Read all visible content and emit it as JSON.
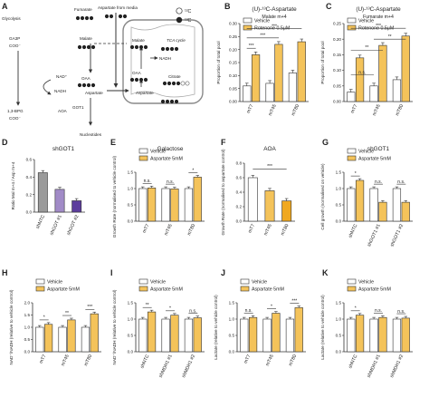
{
  "figure": {
    "panel_labels": [
      "A",
      "B",
      "C",
      "D",
      "E",
      "F",
      "G",
      "H",
      "I",
      "J",
      "K"
    ],
    "colors": {
      "vehicle": "#ffffff",
      "treated": "#f4c35a",
      "grey": "#9a9a9a",
      "purple": "#a18bc7",
      "dark_purple": "#5c3d9d",
      "edge": "#333333"
    }
  },
  "diagram": {
    "glycolysis": "Glycolysis",
    "ga3p": "GA3P",
    "coo_top": "COO⁻",
    "nad_plus": "NAD⁺",
    "nadh_left": "NADH",
    "bpg": "1,3-BPG",
    "coo_bottom": "COO⁻",
    "aspartate_from_media": "Aspartate from media",
    "fumarate": "Fumarate",
    "malate_left": "Malate",
    "oaa_left": "OAA",
    "aspartate_center": "Aspartate",
    "got1": "GOT1",
    "aoa": "AOA",
    "nucleotides": "Nucleotides",
    "malate_mito": "Malate",
    "nadh_mito": "NADH",
    "oaa_mito": "OAA",
    "aspartate_mito": "Aspartate",
    "citrate": "Citrate",
    "tca": "TCA cycle",
    "c12": "¹²C",
    "c13": "¹³C"
  },
  "chart_data": [
    {
      "panel": "B",
      "type": "bar",
      "title": "(U)-¹³C-Aspartate",
      "subtitle": "Malate m+4",
      "ylabel": "Proportion of total pool",
      "ylim": [
        0,
        0.3
      ],
      "yticks": [
        "0.00",
        "0.05",
        "0.10",
        "0.15",
        "0.20",
        "0.25",
        "0.30"
      ],
      "categories": [
        "mT7",
        "mT45",
        "mT80"
      ],
      "series": [
        {
          "name": "Vehicle",
          "values": [
            0.06,
            0.07,
            0.11
          ]
        },
        {
          "name": "Rotenone 0.5μM",
          "values": [
            0.18,
            0.22,
            0.23
          ]
        }
      ],
      "legend": [
        "Vehicle",
        "Rotenone 0.5μM"
      ],
      "significance": [
        "***",
        "***",
        "***"
      ]
    },
    {
      "panel": "C",
      "type": "bar",
      "title": "(U)-¹³C-Aspartate",
      "subtitle": "Fumarate m+4",
      "ylabel": "Proportion of total pool",
      "ylim": [
        0,
        0.25
      ],
      "yticks": [
        "0.00",
        "0.05",
        "0.10",
        "0.15",
        "0.20",
        "0.25"
      ],
      "categories": [
        "mT7",
        "mT45",
        "mT80"
      ],
      "series": [
        {
          "name": "Vehicle",
          "values": [
            0.03,
            0.05,
            0.07
          ]
        },
        {
          "name": "Rotenone 0.5μM",
          "values": [
            0.14,
            0.18,
            0.21
          ]
        }
      ],
      "legend": [
        "Vehicle",
        "Rotenone 0.5μM"
      ],
      "significance": [
        "n.s.",
        "**",
        "***",
        "**"
      ]
    },
    {
      "panel": "D",
      "type": "bar",
      "title": "shGOT1",
      "ylabel": "Ratio Mal m+4 / Asp m+4",
      "ylim": [
        0,
        0.6
      ],
      "yticks": [
        "0.0",
        "0.2",
        "0.4",
        "0.6"
      ],
      "categories": [
        "shNTC",
        "shGOT #1",
        "shGOT #2"
      ],
      "values": [
        0.45,
        0.26,
        0.13
      ],
      "colors": [
        "#9a9a9a",
        "#a18bc7",
        "#5c3d9d"
      ]
    },
    {
      "panel": "E",
      "type": "bar",
      "title": "Galactose",
      "ylabel": "Growth Rate (normalised to vehicle control)",
      "ylim": [
        0,
        1.5
      ],
      "yticks": [
        "0.0",
        "0.5",
        "1.0",
        "1.5"
      ],
      "categories": [
        "mT7",
        "mT45",
        "mT80"
      ],
      "series": [
        {
          "name": "Vehicle",
          "values": [
            1.0,
            1.0,
            1.0
          ]
        },
        {
          "name": "Aspartate 5mM",
          "values": [
            1.02,
            0.99,
            1.35
          ]
        }
      ],
      "legend": [
        "Vehicle",
        "Aspartate 5mM"
      ],
      "significance": [
        "n.s.",
        "n.s.",
        "*"
      ]
    },
    {
      "panel": "F",
      "type": "bar",
      "title": "AOA",
      "ylabel": "Growth Rate (normalised to aspartate control)",
      "ylim": [
        0,
        0.8
      ],
      "yticks": [
        "0.0",
        "0.2",
        "0.4",
        "0.6",
        "0.8"
      ],
      "categories": [
        "mT7",
        "mT45",
        "mT80"
      ],
      "values": [
        0.6,
        0.42,
        0.28
      ],
      "colors": [
        "#ffffff",
        "#f4c35a",
        "#f0a820"
      ],
      "significance": [
        "***"
      ]
    },
    {
      "panel": "G",
      "type": "bar",
      "title": "shGOT1",
      "ylabel": "Cell growth (normalised on vehicle)",
      "ylim": [
        0,
        1.5
      ],
      "yticks": [
        "0.0",
        "0.5",
        "1.0",
        "1.5"
      ],
      "categories": [
        "shNTC",
        "shGOT1 #1",
        "shGOT1 #2"
      ],
      "series": [
        {
          "name": "Vehicle",
          "values": [
            1.0,
            1.0,
            1.0
          ]
        },
        {
          "name": "Aspartate 5mM",
          "values": [
            1.25,
            0.58,
            0.58
          ]
        }
      ],
      "legend": [
        "Vehicle",
        "Aspartate 5mM"
      ],
      "significance": [
        "*",
        "n.s.",
        "n.s."
      ]
    },
    {
      "panel": "H",
      "type": "bar",
      "ylabel": "NAD⁺/NADH (relative to vehicle control)",
      "ylim": [
        0,
        2.0
      ],
      "yticks": [
        "0.0",
        "0.5",
        "1.0",
        "1.5",
        "2.0"
      ],
      "categories": [
        "mT7",
        "mT45",
        "mT80"
      ],
      "series": [
        {
          "name": "Vehicle",
          "values": [
            1.0,
            1.0,
            1.0
          ]
        },
        {
          "name": "Aspartate 5mM",
          "values": [
            1.12,
            1.3,
            1.55
          ]
        }
      ],
      "legend": [
        "Vehicle",
        "Aspartate 5mM"
      ],
      "significance": [
        "*",
        "**",
        "***"
      ]
    },
    {
      "panel": "I",
      "type": "bar",
      "ylabel": "NAD⁺/NADH (relative to vehicle control)",
      "ylim": [
        0,
        1.5
      ],
      "yticks": [
        "0.0",
        "0.5",
        "1.0",
        "1.5"
      ],
      "categories": [
        "shNTC",
        "shMDH1 #1",
        "shMDH1 #2"
      ],
      "series": [
        {
          "name": "Vehicle",
          "values": [
            1.0,
            1.0,
            1.0
          ]
        },
        {
          "name": "Aspartate 5mM",
          "values": [
            1.22,
            1.12,
            1.04
          ]
        }
      ],
      "legend": [
        "Vehicle",
        "Aspartate 5mM"
      ],
      "significance": [
        "**",
        "*",
        "n.s."
      ]
    },
    {
      "panel": "J",
      "type": "bar",
      "ylabel": "Lactate (relative to vehicle control)",
      "ylim": [
        0,
        1.5
      ],
      "yticks": [
        "0.0",
        "0.5",
        "1.0",
        "1.5"
      ],
      "categories": [
        "mT7",
        "mT45",
        "mT80"
      ],
      "series": [
        {
          "name": "Vehicle",
          "values": [
            1.0,
            1.0,
            1.0
          ]
        },
        {
          "name": "Aspartate 5mM",
          "values": [
            1.05,
            1.18,
            1.35
          ]
        }
      ],
      "legend": [
        "Vehicle",
        "Aspartate 5mM"
      ],
      "significance": [
        "n.s.",
        "*",
        "***"
      ]
    },
    {
      "panel": "K",
      "type": "bar",
      "ylabel": "Lactate (relative to vehicle control)",
      "ylim": [
        0,
        1.5
      ],
      "yticks": [
        "0.0",
        "0.5",
        "1.0",
        "1.5"
      ],
      "categories": [
        "shNTC",
        "shMDH1 #1",
        "shMDH1 #2"
      ],
      "series": [
        {
          "name": "Vehicle",
          "values": [
            1.0,
            1.0,
            1.0
          ]
        },
        {
          "name": "Aspartate 5mM",
          "values": [
            1.12,
            1.05,
            1.03
          ]
        }
      ],
      "legend": [
        "Vehicle",
        "Aspartate 5mM"
      ],
      "significance": [
        "*",
        "n.s.",
        "n.s."
      ]
    }
  ]
}
